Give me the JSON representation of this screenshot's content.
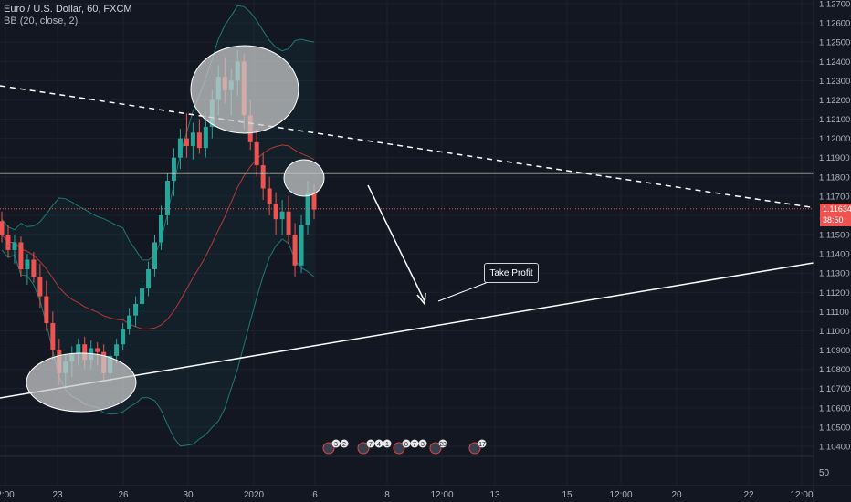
{
  "header": {
    "symbol_line": "Euro / U.S. Dollar, 60, FXCM",
    "indicator_line": "BB (20, close, 2)"
  },
  "annotations": {
    "take_profit": "Take Profit"
  },
  "price_tag": {
    "price": "1.11634",
    "countdown": "38:50"
  },
  "volume_axis_label": "50",
  "event_badges": [
    "3",
    "2",
    "7",
    "4",
    "1",
    "8",
    "7",
    "3",
    "23",
    "17",
    "10"
  ],
  "colors": {
    "background": "#131722",
    "up": "#26a69a",
    "down": "#ef5350",
    "bb_band": "#1f7a72",
    "bb_basis": "#b53a35",
    "lines": "#ffffff",
    "ellipse": "#c8c8c8"
  },
  "chart_data": {
    "type": "candlestick",
    "title": "Euro / U.S. Dollar, 60, FXCM",
    "indicator": "BB (20, close, 2)",
    "y_axis": {
      "ticks": [
        "1.12700",
        "1.12600",
        "1.12500",
        "1.12400",
        "1.12300",
        "1.12200",
        "1.12100",
        "1.12000",
        "1.11900",
        "1.11800",
        "1.11700",
        "1.11600",
        "1.11500",
        "1.11400",
        "1.11300",
        "1.11200",
        "1.11100",
        "1.11000",
        "1.10900",
        "1.10800",
        "1.10700",
        "1.10600",
        "1.10500",
        "1.10400"
      ],
      "range": [
        1.1037,
        1.1273
      ]
    },
    "x_axis": {
      "ticks": [
        "2:00",
        "23",
        "26",
        "30",
        "2020",
        "6",
        "8",
        "12:00",
        "13",
        "15",
        "12:00",
        "20",
        "22",
        "12:00"
      ]
    },
    "last_price": 1.11634,
    "horizontal_resistance": 1.1182,
    "candles_ohlc": [
      [
        1.1157,
        1.1162,
        1.1146,
        1.115
      ],
      [
        1.115,
        1.1155,
        1.1138,
        1.1142
      ],
      [
        1.1142,
        1.115,
        1.1135,
        1.1146
      ],
      [
        1.1146,
        1.1149,
        1.1128,
        1.1132
      ],
      [
        1.1132,
        1.114,
        1.1124,
        1.1137
      ],
      [
        1.1137,
        1.1141,
        1.1125,
        1.1128
      ],
      [
        1.1128,
        1.1135,
        1.1112,
        1.1118
      ],
      [
        1.1118,
        1.1126,
        1.11,
        1.1104
      ],
      [
        1.1104,
        1.111,
        1.1085,
        1.109
      ],
      [
        1.109,
        1.1096,
        1.1072,
        1.1078
      ],
      [
        1.1078,
        1.1088,
        1.107,
        1.1084
      ],
      [
        1.1084,
        1.1092,
        1.1076,
        1.1088
      ],
      [
        1.1088,
        1.1096,
        1.1082,
        1.1093
      ],
      [
        1.1093,
        1.1097,
        1.108,
        1.1085
      ],
      [
        1.1085,
        1.1095,
        1.108,
        1.1091
      ],
      [
        1.1091,
        1.1094,
        1.1082,
        1.1089
      ],
      [
        1.1089,
        1.1093,
        1.1074,
        1.1078
      ],
      [
        1.1078,
        1.109,
        1.1074,
        1.1087
      ],
      [
        1.1087,
        1.1096,
        1.1083,
        1.1093
      ],
      [
        1.1093,
        1.1104,
        1.109,
        1.1101
      ],
      [
        1.1101,
        1.1112,
        1.1098,
        1.1108
      ],
      [
        1.1108,
        1.1118,
        1.1102,
        1.1114
      ],
      [
        1.1114,
        1.1126,
        1.111,
        1.1122
      ],
      [
        1.1122,
        1.1136,
        1.1118,
        1.1132
      ],
      [
        1.1132,
        1.115,
        1.1128,
        1.1146
      ],
      [
        1.1146,
        1.1165,
        1.1142,
        1.116
      ],
      [
        1.116,
        1.1182,
        1.1155,
        1.1178
      ],
      [
        1.1178,
        1.1195,
        1.117,
        1.119
      ],
      [
        1.119,
        1.1205,
        1.1184,
        1.12
      ],
      [
        1.12,
        1.1213,
        1.119,
        1.1196
      ],
      [
        1.1196,
        1.1208,
        1.1189,
        1.1203
      ],
      [
        1.1203,
        1.121,
        1.1192,
        1.1195
      ],
      [
        1.1195,
        1.1212,
        1.119,
        1.1206
      ],
      [
        1.1206,
        1.1225,
        1.12,
        1.122
      ],
      [
        1.122,
        1.1238,
        1.1212,
        1.1232
      ],
      [
        1.1232,
        1.1242,
        1.1218,
        1.1225
      ],
      [
        1.1225,
        1.1236,
        1.1212,
        1.123
      ],
      [
        1.123,
        1.1246,
        1.1222,
        1.124
      ],
      [
        1.124,
        1.1244,
        1.1205,
        1.1212
      ],
      [
        1.1212,
        1.122,
        1.1194,
        1.1198
      ],
      [
        1.1198,
        1.1205,
        1.118,
        1.1186
      ],
      [
        1.1186,
        1.1192,
        1.1168,
        1.1174
      ],
      [
        1.1174,
        1.118,
        1.116,
        1.1166
      ],
      [
        1.1166,
        1.1172,
        1.115,
        1.1158
      ],
      [
        1.1158,
        1.1168,
        1.115,
        1.1162
      ],
      [
        1.1162,
        1.117,
        1.1145,
        1.115
      ],
      [
        1.115,
        1.1156,
        1.1128,
        1.1134
      ],
      [
        1.1134,
        1.116,
        1.113,
        1.1155
      ],
      [
        1.1155,
        1.1178,
        1.115,
        1.1172
      ],
      [
        1.1172,
        1.1176,
        1.1158,
        1.1163
      ]
    ],
    "drawings": {
      "horizontal_line": 1.1182,
      "dashed_trendline": "descending from top-left toward price axis",
      "ascending_trendline": "rising support from bottom-left to right edge",
      "projection_arrow": "down toward support",
      "ellipses": 3
    }
  }
}
